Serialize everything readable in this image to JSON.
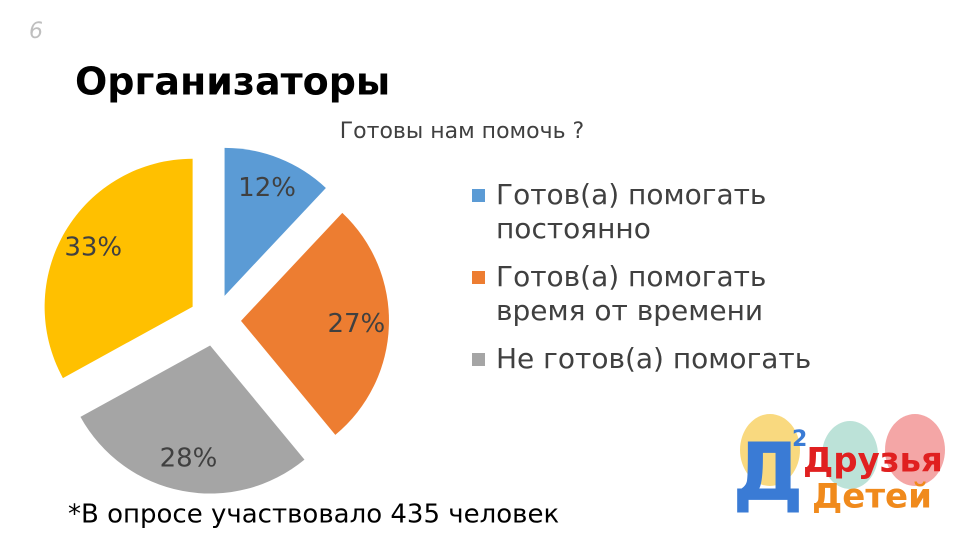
{
  "page_number": "6",
  "heading": "Организаторы",
  "chart_data": {
    "type": "pie",
    "title": "Готовы нам помочь ?",
    "categories": [
      "Готов(а) помогать постоянно",
      "Готов(а) помогать время от времени",
      "Не готов(а) помогать",
      null
    ],
    "values": [
      12,
      27,
      28,
      33
    ],
    "value_labels": [
      "12%",
      "27%",
      "28%",
      "33%"
    ],
    "colors": [
      "#5b9bd5",
      "#ed7d31",
      "#a5a5a5",
      "#ffc000"
    ],
    "legend": "right"
  },
  "footnote": "*В опросе участвовало 435 человек",
  "logo": {
    "letter": "Д",
    "superscript": "2",
    "line1": "Друзья",
    "line2": "Детей"
  }
}
